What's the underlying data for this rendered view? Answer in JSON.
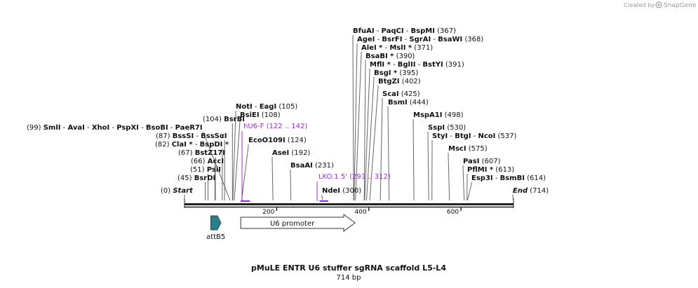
{
  "credit": {
    "prefix": "Created by",
    "brand": "SnapGene"
  },
  "map": {
    "name": "pMuLE ENTR U6 stuffer sgRNA scaffold L5-L4",
    "length_label": "714 bp",
    "total_bp": 714
  },
  "colors": {
    "backbone": "#222222",
    "primer": "#9a2fd1",
    "attB5": "#2e7d8c",
    "promoter_fill": "#ffffff",
    "leader": "#666666"
  },
  "ticks": [
    {
      "bp": 200,
      "label": "200"
    },
    {
      "bp": 400,
      "label": "400"
    },
    {
      "bp": 600,
      "label": "600"
    }
  ],
  "rows": [
    {
      "segments": [
        {
          "name": "BfuAI",
          "bp": 367
        },
        {
          "name": "PaqCI",
          "bp": 367
        },
        {
          "name": "BspMI",
          "bp": 367
        }
      ],
      "pos": "(367)"
    },
    {
      "segments": [
        {
          "name": "AgeI",
          "bp": 368
        },
        {
          "name": "BsrFI",
          "bp": 368
        },
        {
          "name": "SgrAI",
          "bp": 368
        },
        {
          "name": "BsaWI",
          "bp": 368
        }
      ],
      "pos": "(368)"
    },
    {
      "segments": [
        {
          "name": "AleI *",
          "bp": 371
        },
        {
          "name": "MslI *",
          "bp": 371
        }
      ],
      "pos": "(371)"
    },
    {
      "segments": [
        {
          "name": "BsaBI *",
          "bp": 390
        }
      ],
      "pos": "(390)"
    },
    {
      "segments": [
        {
          "name": "MflI *",
          "bp": 391
        },
        {
          "name": "BglII",
          "bp": 391
        },
        {
          "name": "BstYI",
          "bp": 391
        }
      ],
      "pos": "(391)"
    },
    {
      "segments": [
        {
          "name": "BsgI *",
          "bp": 395
        }
      ],
      "pos": "(395)"
    },
    {
      "segments": [
        {
          "name": "BtgZI",
          "bp": 402
        }
      ],
      "pos": "(402)"
    },
    {
      "segments": [
        {
          "name": "ScaI",
          "bp": 425
        }
      ],
      "pos": "(425)"
    },
    {
      "segments": [
        {
          "name": "BsmI",
          "bp": 444
        }
      ],
      "pos": "(444)"
    },
    {
      "segments": [
        {
          "name": "NotI",
          "bp": 105
        },
        {
          "name": "EagI",
          "bp": 105
        }
      ],
      "pos": "(105)"
    },
    {
      "segments": [
        {
          "name": "BsiEI",
          "bp": 108
        }
      ],
      "pos": "(108)"
    },
    {
      "segments": [
        {
          "name": "MspA1I",
          "bp": 498
        }
      ],
      "pos": "(498)"
    },
    {
      "segments": [
        {
          "name": "BsrBI",
          "bp": 104
        }
      ],
      "pos": "(104)",
      "side": "left"
    },
    {
      "segments": [
        {
          "name": "SmlI",
          "bp": 99
        },
        {
          "name": "AvaI",
          "bp": 99
        },
        {
          "name": "XhoI",
          "bp": 99
        },
        {
          "name": "PspXI",
          "bp": 99
        },
        {
          "name": "BsoBI",
          "bp": 99
        },
        {
          "name": "PaeR7I",
          "bp": 99
        }
      ],
      "pos": "(99)",
      "side": "left"
    },
    {
      "segments": [
        {
          "name": "SspI",
          "bp": 530
        }
      ],
      "pos": "(530)"
    },
    {
      "segments": [
        {
          "name": "BssSI",
          "bp": 87
        },
        {
          "name": "BssSαI",
          "bp": 87
        }
      ],
      "pos": "(87)",
      "side": "left"
    },
    {
      "segments": [
        {
          "name": "StyI",
          "bp": 537
        },
        {
          "name": "BtgI",
          "bp": 537
        },
        {
          "name": "NcoI",
          "bp": 537
        }
      ],
      "pos": "(537)"
    },
    {
      "segments": [
        {
          "name": "EcoO109I",
          "bp": 124
        }
      ],
      "pos": "(124)"
    },
    {
      "segments": [
        {
          "name": "ClaI *",
          "bp": 82
        },
        {
          "name": "BspDI *",
          "bp": 82
        }
      ],
      "pos": "(82)",
      "side": "left"
    },
    {
      "segments": [
        {
          "name": "BstZ17I",
          "bp": 67
        }
      ],
      "pos": "(67)",
      "side": "left"
    },
    {
      "segments": [
        {
          "name": "AseI",
          "bp": 192
        }
      ],
      "pos": "(192)"
    },
    {
      "segments": [
        {
          "name": "MscI",
          "bp": 575
        }
      ],
      "pos": "(575)"
    },
    {
      "segments": [
        {
          "name": "AccI",
          "bp": 66
        }
      ],
      "pos": "(66)",
      "side": "left"
    },
    {
      "segments": [
        {
          "name": "PasI",
          "bp": 607
        }
      ],
      "pos": "(607)"
    },
    {
      "segments": [
        {
          "name": "BsaAI",
          "bp": 231
        }
      ],
      "pos": "(231)"
    },
    {
      "segments": [
        {
          "name": "PsiI",
          "bp": 51
        }
      ],
      "pos": "(51)",
      "side": "left"
    },
    {
      "segments": [
        {
          "name": "PflMI *",
          "bp": 613
        }
      ],
      "pos": "(613)"
    },
    {
      "segments": [
        {
          "name": "BsrDI",
          "bp": 45
        }
      ],
      "pos": "(45)",
      "side": "left"
    },
    {
      "segments": [
        {
          "name": "Esp3I",
          "bp": 614
        },
        {
          "name": "BsmBI",
          "bp": 614
        }
      ],
      "pos": "(614)"
    },
    {
      "segments": [
        {
          "name": "NdeI",
          "bp": 300
        }
      ],
      "pos": "(300)"
    },
    {
      "segments": [
        {
          "name": "Start",
          "bp": 0
        }
      ],
      "pos": "(0)",
      "side": "left",
      "italic": true
    },
    {
      "segments": [
        {
          "name": "End",
          "bp": 714
        }
      ],
      "pos": "(714)",
      "italic": true
    }
  ],
  "primers": [
    {
      "name": "hU6-F",
      "pos": "(122 .. 142)",
      "start": 122,
      "end": 142
    },
    {
      "name": "LKO.1 5'",
      "pos": "(293 .. 312)",
      "start": 293,
      "end": 312
    }
  ],
  "features": [
    {
      "name": "attB5",
      "type": "att",
      "start": 57,
      "end": 79
    },
    {
      "name": "U6 promoter",
      "type": "promoter",
      "start": 122,
      "end": 370
    }
  ]
}
